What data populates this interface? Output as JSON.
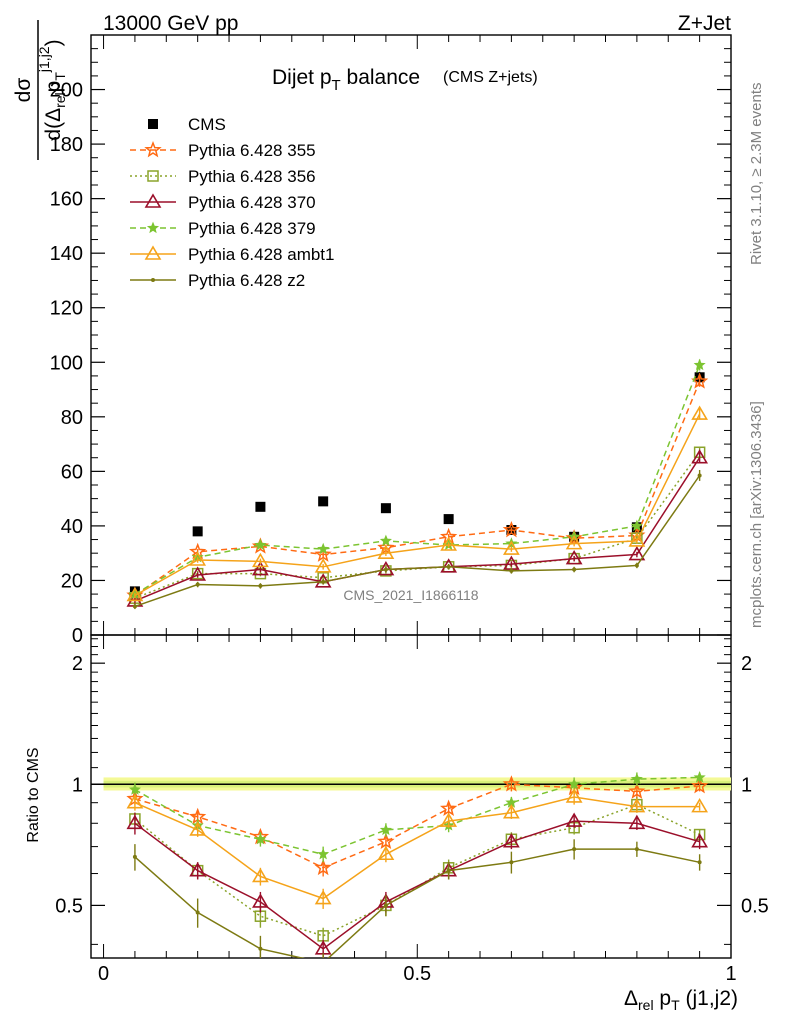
{
  "header": {
    "left": "13000 GeV pp",
    "right": "Z+Jet"
  },
  "side_labels": {
    "rivet": "Rivet 3.1.10, ≥ 2.3M events",
    "mcplots": "mcplots.cern.ch [arXiv:1306.3436]"
  },
  "watermark": "CMS_2021_I1866118",
  "colors": {
    "CMS": "#000000",
    "Pythia 6.428 355": "#ff6a13",
    "Pythia 6.428 356": "#8aa32a",
    "Pythia 6.428 370": "#9b0f2a",
    "Pythia 6.428 379": "#7cc431",
    "Pythia 6.428 ambt1": "#f5a31a",
    "Pythia 6.428 z2": "#7d7a12",
    "ratio_band": "#f4f996",
    "ratio_band_inner": "#d8f07a"
  },
  "chart_data": [
    {
      "type": "line",
      "title": "Dijet p_T balance",
      "title_note": "(CMS Z+jets)",
      "ylabel": "dσ / d(Δ_rel p_T^{j1,j2})",
      "ylim": [
        0,
        220
      ],
      "yticks": [
        0,
        20,
        40,
        60,
        80,
        100,
        120,
        140,
        160,
        180,
        200
      ],
      "xlim": [
        -0.02,
        1.0
      ],
      "legend_position": "top-left",
      "x": [
        0.05,
        0.15,
        0.25,
        0.35,
        0.45,
        0.55,
        0.65,
        0.75,
        0.85,
        0.95
      ],
      "series": [
        {
          "name": "CMS",
          "marker": "square",
          "line": "none",
          "values": [
            16,
            38,
            47,
            49,
            46.5,
            42.5,
            38.5,
            36,
            39.5,
            94.5
          ],
          "err": [
            1,
            1,
            1,
            1,
            1,
            1,
            1,
            1,
            1,
            2
          ]
        },
        {
          "name": "Pythia 6.428 355",
          "marker": "star",
          "line": "dashed",
          "values": [
            14.5,
            30.5,
            32.5,
            29.5,
            32,
            36,
            38.5,
            35.5,
            36.5,
            93
          ],
          "err": [
            1,
            1,
            1,
            1,
            1,
            1,
            1,
            1,
            1,
            2
          ]
        },
        {
          "name": "Pythia 6.428 356",
          "marker": "open-square",
          "line": "dotted",
          "values": [
            13.5,
            22.5,
            22.5,
            21,
            23.5,
            25,
            25.5,
            28,
            35.5,
            67
          ],
          "err": [
            1,
            1,
            1,
            1,
            1,
            1,
            1,
            1,
            1,
            2
          ]
        },
        {
          "name": "Pythia 6.428 370",
          "marker": "open-triangle",
          "line": "solid",
          "values": [
            12.5,
            22,
            24,
            19.5,
            24,
            25,
            26,
            28,
            29.5,
            65
          ],
          "err": [
            1,
            1,
            1,
            1,
            1,
            1,
            1,
            1,
            1,
            2
          ]
        },
        {
          "name": "Pythia 6.428 379",
          "marker": "small-star",
          "line": "dashed",
          "values": [
            15,
            28.5,
            33,
            31.5,
            34.5,
            33,
            33.5,
            36,
            40,
            99
          ],
          "err": [
            1,
            1,
            1,
            1,
            1,
            1,
            1,
            1,
            1,
            2
          ]
        },
        {
          "name": "Pythia 6.428 ambt1",
          "marker": "open-triangle",
          "line": "solid",
          "values": [
            14.5,
            27.5,
            27,
            25,
            30,
            33,
            31.5,
            33.5,
            34.5,
            81
          ],
          "err": [
            1,
            1,
            1,
            1,
            1,
            1,
            1,
            1,
            1,
            2
          ]
        },
        {
          "name": "Pythia 6.428 z2",
          "marker": "dot",
          "line": "solid",
          "values": [
            10.5,
            18.5,
            18,
            19.5,
            24,
            25,
            23.5,
            24,
            25.5,
            58.5
          ],
          "err": [
            1,
            1,
            1,
            1,
            1,
            1,
            1,
            1,
            1,
            2
          ]
        }
      ]
    },
    {
      "type": "line",
      "ylabel": "Ratio to CMS",
      "xlabel": "Δ_rel p_T (j1,j2)",
      "ylim": [
        0.37,
        2.35
      ],
      "scale": "log",
      "yticks": [
        0.5,
        1,
        2
      ],
      "xlim": [
        -0.02,
        1.0
      ],
      "xticks": [
        0,
        0.5,
        1
      ],
      "x": [
        0.05,
        0.15,
        0.25,
        0.35,
        0.45,
        0.55,
        0.65,
        0.75,
        0.85,
        0.95
      ],
      "series": [
        {
          "name": "Pythia 6.428 355",
          "values": [
            0.92,
            0.83,
            0.74,
            0.62,
            0.72,
            0.87,
            1.0,
            0.98,
            0.96,
            0.99
          ],
          "err": [
            0.03,
            0.03,
            0.03,
            0.03,
            0.03,
            0.03,
            0.04,
            0.04,
            0.04,
            0.03
          ]
        },
        {
          "name": "Pythia 6.428 356",
          "values": [
            0.82,
            0.61,
            0.47,
            0.42,
            0.5,
            0.62,
            0.73,
            0.78,
            0.89,
            0.75
          ],
          "err": [
            0.03,
            0.03,
            0.03,
            0.02,
            0.03,
            0.03,
            0.03,
            0.03,
            0.04,
            0.02
          ]
        },
        {
          "name": "Pythia 6.428 370",
          "values": [
            0.8,
            0.61,
            0.51,
            0.39,
            0.51,
            0.61,
            0.72,
            0.81,
            0.8,
            0.72
          ],
          "err": [
            0.05,
            0.03,
            0.03,
            0.02,
            0.03,
            0.03,
            0.03,
            0.03,
            0.03,
            0.03
          ]
        },
        {
          "name": "Pythia 6.428 379",
          "values": [
            0.97,
            0.79,
            0.73,
            0.67,
            0.77,
            0.79,
            0.9,
            1.0,
            1.03,
            1.04
          ],
          "err": [
            0.04,
            0.03,
            0.03,
            0.03,
            0.03,
            0.03,
            0.03,
            0.04,
            0.04,
            0.03
          ]
        },
        {
          "name": "Pythia 6.428 ambt1",
          "values": [
            0.9,
            0.77,
            0.59,
            0.52,
            0.67,
            0.81,
            0.85,
            0.93,
            0.88,
            0.88
          ],
          "err": [
            0.04,
            0.03,
            0.03,
            0.03,
            0.03,
            0.03,
            0.03,
            0.04,
            0.03,
            0.02
          ]
        },
        {
          "name": "Pythia 6.428 z2",
          "values": [
            0.66,
            0.48,
            0.39,
            0.36,
            0.5,
            0.61,
            0.64,
            0.69,
            0.69,
            0.64
          ],
          "err": [
            0.05,
            0.04,
            0.03,
            0.02,
            0.03,
            0.03,
            0.04,
            0.04,
            0.03,
            0.03
          ]
        }
      ]
    }
  ]
}
